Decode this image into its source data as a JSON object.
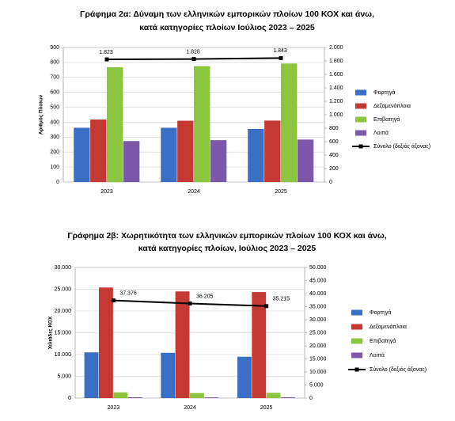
{
  "chart_data": [
    {
      "type": "bar",
      "title": [
        "Γράφημα 2α: Δύναμη των ελληνικών εμπορικών πλοίων 100 ΚΟΧ και άνω,",
        "κατά κατηγορίες πλοίων Ιούλιος 2023 – 2025"
      ],
      "y_label": "Αριθμός Πλοίων",
      "categories": [
        "2023",
        "2024",
        "2025"
      ],
      "ylim": [
        0,
        900
      ],
      "yticks": [
        0,
        100,
        200,
        300,
        400,
        500,
        600,
        700,
        800,
        900
      ],
      "y2lim": [
        0,
        2000
      ],
      "y2ticks": [
        0,
        200,
        400,
        600,
        800,
        {
          "value": 1000,
          "label": "1.000"
        },
        {
          "value": 1200,
          "label": "1.200"
        },
        {
          "value": 1400,
          "label": "1.400"
        },
        {
          "value": 1600,
          "label": "1.600"
        },
        {
          "value": 1800,
          "label": "1.800"
        },
        {
          "value": 2000,
          "label": "2.000"
        }
      ],
      "grid": true,
      "series": [
        {
          "name": "Φορτηγά",
          "color": "#3b6fc6",
          "values": [
            363,
            363,
            355
          ]
        },
        {
          "name": "Δεξαμενόπλοια",
          "color": "#c43a32",
          "values": [
            418,
            410,
            411
          ]
        },
        {
          "name": "Επιβατηγά",
          "color": "#8cc63e",
          "values": [
            768,
            775,
            793
          ]
        },
        {
          "name": "Λοιπά",
          "color": "#7d58a8",
          "values": [
            274,
            280,
            284
          ]
        },
        {
          "name": "Σύνολο (δεξιός άξονας)",
          "color": "#000000",
          "type": "line",
          "axis": "y2",
          "values": [
            1823,
            1828,
            1843
          ],
          "value_labels": [
            "1.823",
            "1.828",
            "1.843"
          ]
        }
      ]
    },
    {
      "type": "bar",
      "title": [
        "Γράφημα 2β: Χωρητικότητα των ελληνικών εμπορικών πλοίων 100 ΚΟΧ και άνω,",
        "κατά κατηγορίες πλοίων, Ιούλιος 2023 – 2025"
      ],
      "y_label": "Χιλιάδες ΚΟΧ",
      "categories": [
        "2023",
        "2024",
        "2025"
      ],
      "ylim": [
        0,
        30000
      ],
      "yticks": [
        0,
        {
          "value": 5000,
          "label": "5.000"
        },
        {
          "value": 10000,
          "label": "10.000"
        },
        {
          "value": 15000,
          "label": "15.000"
        },
        {
          "value": 20000,
          "label": "20.000"
        },
        {
          "value": 25000,
          "label": "25.000"
        },
        {
          "value": 30000,
          "label": "30.000"
        }
      ],
      "y2lim": [
        0,
        50000
      ],
      "y2ticks": [
        0,
        {
          "value": 5000,
          "label": "5.000"
        },
        {
          "value": 10000,
          "label": "10.000"
        },
        {
          "value": 15000,
          "label": "15.000"
        },
        {
          "value": 20000,
          "label": "20.000"
        },
        {
          "value": 25000,
          "label": "25.000"
        },
        {
          "value": 30000,
          "label": "30.000"
        },
        {
          "value": 35000,
          "label": "35.000"
        },
        {
          "value": 40000,
          "label": "40.000"
        },
        {
          "value": 45000,
          "label": "45.000"
        },
        {
          "value": 50000,
          "label": "50.000"
        }
      ],
      "grid": true,
      "series": [
        {
          "name": "Φορτηγά",
          "color": "#3b6fc6",
          "values": [
            10500,
            10400,
            9500
          ]
        },
        {
          "name": "Δεξαμενόπλοια",
          "color": "#c43a32",
          "values": [
            25400,
            24500,
            24350
          ]
        },
        {
          "name": "Επιβατηγά",
          "color": "#8cc63e",
          "values": [
            1300,
            1150,
            1200
          ]
        },
        {
          "name": "Λοιπά",
          "color": "#7d58a8",
          "values": [
            176,
            155,
            165
          ]
        },
        {
          "name": "Σύνολο (δεξιός άξονας)",
          "color": "#000000",
          "type": "line",
          "axis": "y2",
          "values": [
            37376,
            36205,
            35215
          ],
          "value_labels": [
            "37.376",
            "36.205",
            "35.215"
          ]
        }
      ]
    }
  ]
}
